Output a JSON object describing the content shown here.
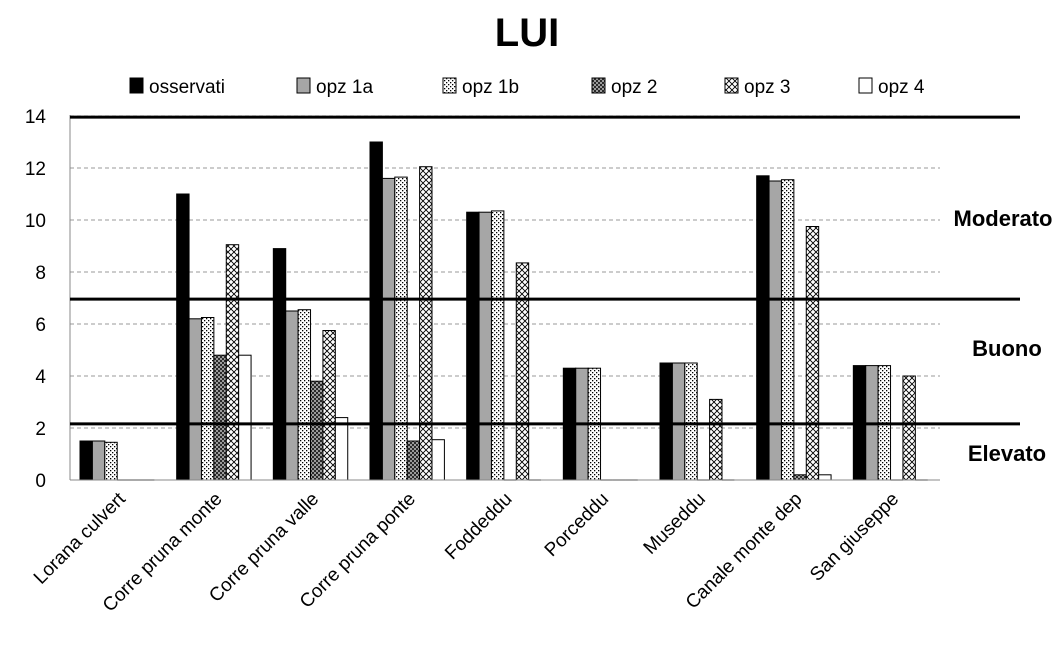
{
  "chart_data": {
    "type": "bar",
    "title": "LUI",
    "xlabel": "",
    "ylabel": "",
    "ylim": [
      0,
      14
    ],
    "yticks": [
      "0",
      "2",
      "4",
      "6",
      "8",
      "10",
      "12",
      "14"
    ],
    "grid": "horizontal dashed",
    "legend_position": "top",
    "categories": [
      "Lorana culvert",
      "Corre pruna monte",
      "Corre pruna valle",
      "Corre pruna ponte",
      "Foddeddu",
      "Porceddu",
      "Museddu",
      "Canale monte dep",
      "San giuseppe"
    ],
    "series": [
      {
        "name": "osservati",
        "values": [
          1.5,
          11.0,
          8.9,
          13.0,
          10.3,
          4.3,
          4.5,
          11.7,
          4.4
        ],
        "fill": "solid",
        "color": "#000000"
      },
      {
        "name": "opz 1a",
        "values": [
          1.5,
          6.2,
          6.5,
          11.6,
          10.3,
          4.3,
          4.5,
          11.5,
          4.4
        ],
        "fill": "solid",
        "color": "#a6a6a6"
      },
      {
        "name": "opz 1b",
        "values": [
          1.45,
          6.25,
          6.55,
          11.65,
          10.35,
          4.3,
          4.5,
          11.55,
          4.4
        ],
        "fill": "dots",
        "color": "#ffffff"
      },
      {
        "name": "opz 2",
        "values": [
          0,
          4.8,
          3.8,
          1.5,
          0,
          0,
          0,
          0.2,
          0
        ],
        "fill": "crosshatch",
        "color": "#808080"
      },
      {
        "name": "opz 3",
        "values": [
          0,
          9.05,
          5.75,
          12.05,
          8.35,
          0,
          3.1,
          9.75,
          4.0
        ],
        "fill": "diamonds",
        "color": "#ffffff"
      },
      {
        "name": "opz 4",
        "values": [
          0,
          4.8,
          2.4,
          1.55,
          0,
          0,
          0,
          0.2,
          0
        ],
        "fill": "solid",
        "color": "#ffffff"
      }
    ],
    "thresholds": [
      {
        "value": 2.1,
        "label": "Elevato"
      },
      {
        "value": 6.9,
        "label": "Buono"
      },
      {
        "value": 13.9,
        "label": "Moderato"
      }
    ]
  }
}
